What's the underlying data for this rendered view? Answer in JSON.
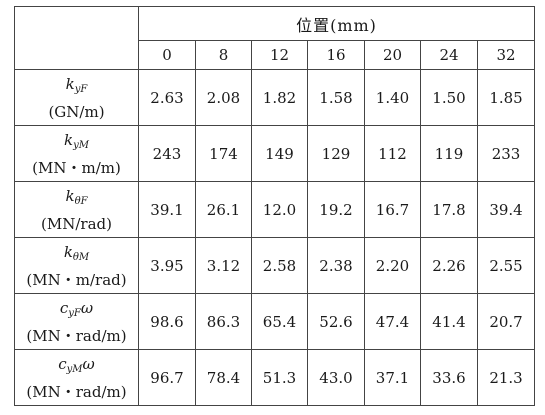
{
  "table": {
    "position_header": "位置(mm)",
    "positions": [
      "0",
      "8",
      "12",
      "16",
      "20",
      "24",
      "32"
    ],
    "rows": [
      {
        "symbol_main": "k",
        "symbol_sub": "yF",
        "unit": "(GN/m)",
        "values": [
          "2.63",
          "2.08",
          "1.82",
          "1.58",
          "1.40",
          "1.50",
          "1.85"
        ]
      },
      {
        "symbol_main": "k",
        "symbol_sub": "yM",
        "unit": "(MN・m/m)",
        "values": [
          "243",
          "174",
          "149",
          "129",
          "112",
          "119",
          "233"
        ]
      },
      {
        "symbol_main": "k",
        "symbol_sub": "θF",
        "unit": "(MN/rad)",
        "values": [
          "39.1",
          "26.1",
          "12.0",
          "19.2",
          "16.7",
          "17.8",
          "39.4"
        ]
      },
      {
        "symbol_main": "k",
        "symbol_sub": "θM",
        "unit": "(MN・m/rad)",
        "values": [
          "3.95",
          "3.12",
          "2.58",
          "2.38",
          "2.20",
          "2.26",
          "2.55"
        ]
      },
      {
        "symbol_main": "c",
        "symbol_sub": "yF",
        "symbol_suffix": "ω",
        "unit": "(MN・rad/m)",
        "values": [
          "98.6",
          "86.3",
          "65.4",
          "52.6",
          "47.4",
          "41.4",
          "20.7"
        ]
      },
      {
        "symbol_main": "c",
        "symbol_sub": "yM",
        "symbol_suffix": "ω",
        "unit": "(MN・rad/m)",
        "values": [
          "96.7",
          "78.4",
          "51.3",
          "43.0",
          "37.1",
          "33.6",
          "21.3"
        ]
      }
    ]
  }
}
